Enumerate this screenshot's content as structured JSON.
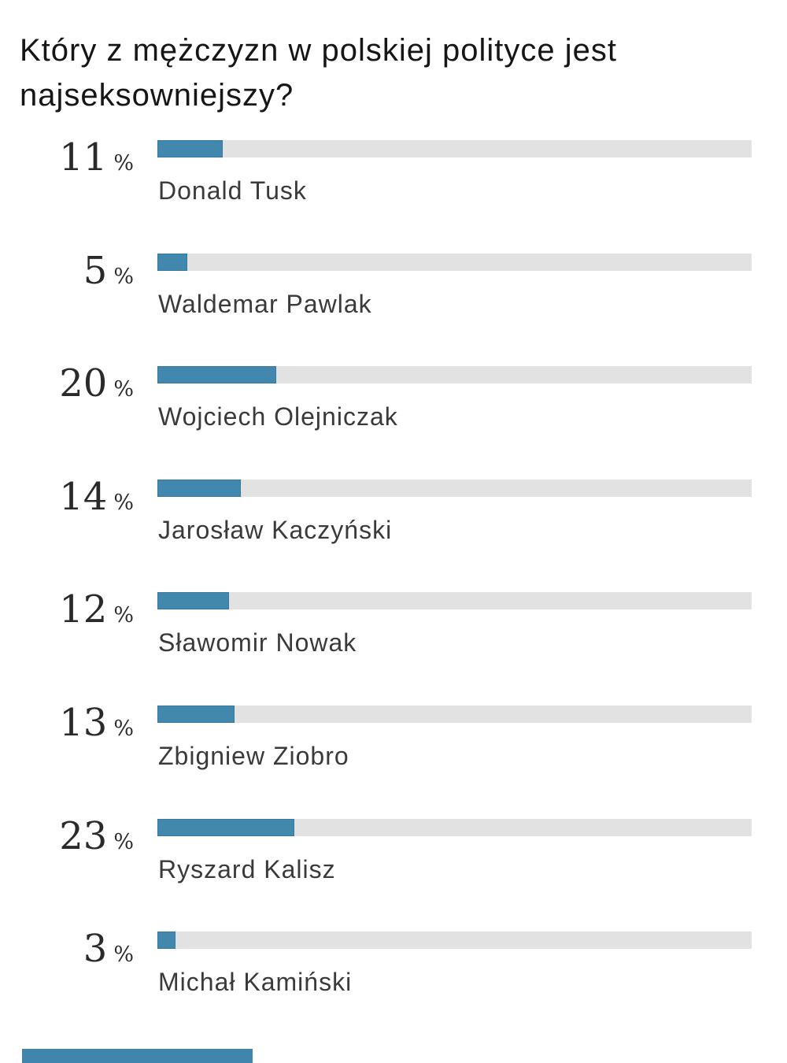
{
  "poll": {
    "title": "Który z mężczyzn w polskiej polityce jest najseksowniejszy?",
    "unit": "%"
  },
  "chart_data": {
    "type": "bar",
    "orientation": "horizontal",
    "title": "Który z mężczyzn w polskiej polityce jest najseksowniejszy?",
    "categories": [
      "Donald Tusk",
      "Waldemar Pawlak",
      "Wojciech Olejniczak",
      "Jarosław Kaczyński",
      "Sławomir Nowak",
      "Zbigniew Ziobro",
      "Ryszard Kalisz",
      "Michał Kamiński"
    ],
    "values": [
      11,
      5,
      20,
      14,
      12,
      13,
      23,
      3
    ],
    "unit": "%",
    "xlim": [
      0,
      100
    ],
    "grid": false,
    "legend": false,
    "bar_color": "#4187ae",
    "track_color": "#e2e2e2",
    "value_label_position": "left",
    "category_label_position": "below-bar"
  },
  "layout": {
    "first_row_top": 178,
    "row_spacing": 143.6,
    "track_width": 755
  },
  "decoration": {
    "bottom_strip_color": "#3f85ad"
  }
}
